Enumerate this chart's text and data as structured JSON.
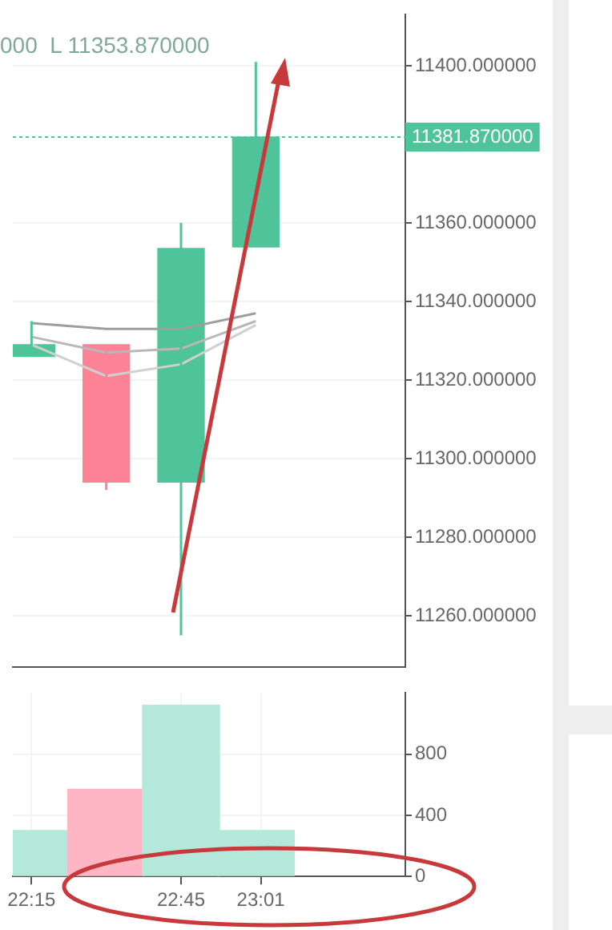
{
  "chart_data": [
    {
      "type": "candlestick",
      "x": [
        22.25,
        22.5,
        22.75,
        23.0
      ],
      "ohlc": [
        [
          11326,
          11335,
          11326,
          11329
        ],
        [
          11329,
          11329,
          11292,
          11294
        ],
        [
          11294,
          11360,
          11255,
          11353.5
        ],
        [
          11353.87,
          11401,
          11353.87,
          11381.87
        ]
      ],
      "colors": [
        "#4fc49a",
        "#fb8395",
        "#4fc49a",
        "#4fc49a"
      ],
      "series": [
        {
          "type": "line",
          "color": "#9e9e9e",
          "values": [
            11334.5,
            11333,
            11333,
            11337
          ]
        },
        {
          "type": "line",
          "color": "#b8b8b8",
          "values": [
            11331,
            11327,
            11328,
            11335
          ]
        },
        {
          "type": "line",
          "color": "#d0d0d0",
          "values": [
            11329,
            11321,
            11324,
            11334
          ]
        }
      ],
      "xlim": [
        22.1875,
        23.5
      ],
      "ylim": [
        11247,
        11413
      ],
      "yticks": [
        {
          "value": 11260,
          "label": "11260.000000"
        },
        {
          "value": 11280,
          "label": "11280.000000"
        },
        {
          "value": 11300,
          "label": "11300.000000"
        },
        {
          "value": 11320,
          "label": "11320.000000"
        },
        {
          "value": 11340,
          "label": "11340.000000"
        },
        {
          "value": 11360,
          "label": "11360.000000"
        },
        {
          "value": 11400,
          "label": "11400.000000"
        }
      ],
      "ref_lines": [
        {
          "axis": "y",
          "value": 11381.87,
          "label": "11381.870000",
          "color": "#4fc49a",
          "line_style": "dotted"
        }
      ],
      "annotations": [
        "000  L 11353.870000"
      ],
      "tick_labels": "y",
      "grid": true,
      "marker": "none"
    },
    {
      "type": "bar",
      "x": [
        22.25,
        22.5,
        22.75,
        23.0
      ],
      "values": [
        300,
        570,
        1120,
        300
      ],
      "colors": [
        "#b3e8da",
        "#ffb6c4",
        "#b3e8da",
        "#b3e8da"
      ],
      "xlim": [
        22.1875,
        23.5
      ],
      "xticks": [
        {
          "value": 22.25,
          "label": "22:15"
        },
        {
          "value": 22.75,
          "label": "22:45"
        },
        {
          "value": 23.0167,
          "label": "23:01"
        }
      ],
      "ylim": [
        0,
        1200
      ],
      "yticks": [
        0,
        400,
        800
      ],
      "grid": true
    }
  ]
}
